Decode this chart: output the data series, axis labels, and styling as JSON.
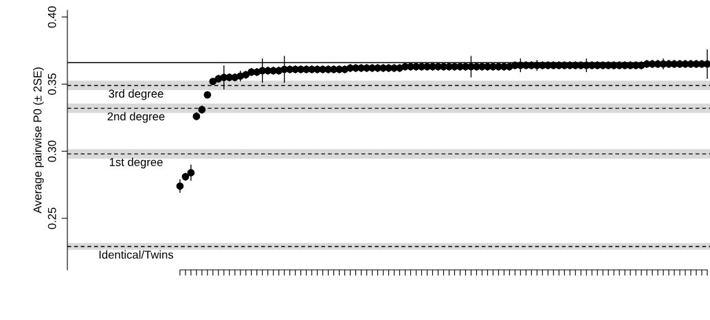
{
  "chart_data": {
    "type": "scatter",
    "ylabel": "Average pairwise P0 (± 2SE)",
    "categories": [
      null,
      null,
      null,
      null,
      null,
      null,
      null,
      null,
      null,
      null,
      null,
      null,
      null,
      null,
      null,
      null,
      null,
      null,
      null,
      null,
      null,
      null,
      null,
      null,
      null,
      null,
      null,
      null,
      null,
      null,
      null,
      null,
      null,
      null,
      null,
      null,
      null,
      null,
      null,
      null,
      null,
      null,
      null,
      null,
      null,
      null,
      null,
      null,
      null,
      null,
      null,
      null,
      null,
      null,
      null,
      null,
      null,
      null,
      null,
      null,
      null,
      null,
      null,
      null,
      null,
      null,
      null,
      null,
      null,
      null,
      null,
      null,
      null,
      null,
      null,
      null,
      null,
      null,
      null,
      null,
      null,
      null,
      null,
      null,
      null,
      null,
      null,
      null,
      null,
      null,
      null,
      null,
      null,
      null,
      null,
      null,
      null,
      null,
      null,
      null,
      null,
      null,
      null,
      null,
      null,
      null,
      null,
      null,
      null,
      null,
      null,
      null,
      null,
      null,
      null,
      null,
      null
    ],
    "series": [
      {
        "color": "#000000",
        "values": [
          null,
          null,
          null,
          null,
          null,
          null,
          null,
          null,
          null,
          null,
          null,
          null,
          null,
          null,
          null,
          null,
          null,
          null,
          null,
          null,
          0.274,
          0.281,
          0.284,
          0.326,
          0.331,
          0.342,
          0.352,
          0.354,
          0.355,
          0.355,
          0.355,
          0.356,
          0.357,
          0.359,
          0.359,
          0.36,
          0.36,
          0.36,
          0.36,
          0.361,
          0.361,
          0.361,
          0.361,
          0.361,
          0.361,
          0.361,
          0.361,
          0.361,
          0.361,
          0.361,
          0.361,
          0.362,
          0.362,
          0.362,
          0.362,
          0.362,
          0.362,
          0.362,
          0.362,
          0.362,
          0.362,
          0.363,
          0.363,
          0.363,
          0.363,
          0.363,
          0.363,
          0.363,
          0.363,
          0.363,
          0.363,
          0.363,
          0.363,
          0.363,
          0.363,
          0.363,
          0.363,
          0.363,
          0.363,
          0.363,
          0.363,
          0.364,
          0.364,
          0.364,
          0.364,
          0.364,
          0.364,
          0.364,
          0.364,
          0.364,
          0.364,
          0.364,
          0.364,
          0.364,
          0.364,
          0.364,
          0.364,
          0.364,
          0.364,
          0.364,
          0.364,
          0.364,
          0.364,
          0.364,
          0.364,
          0.365,
          0.365,
          0.365,
          0.365,
          0.365,
          0.365,
          0.365,
          0.365,
          0.365,
          0.365,
          0.365,
          0.365
        ],
        "errors": [
          null,
          null,
          null,
          null,
          null,
          null,
          null,
          null,
          null,
          null,
          null,
          null,
          null,
          null,
          null,
          null,
          null,
          null,
          null,
          null,
          0.005,
          0.003,
          0.006,
          0.003,
          0.003,
          0.002,
          0.002,
          0.003,
          0.009,
          0.003,
          0.003,
          0.004,
          0.003,
          0.003,
          0.003,
          0.009,
          0.003,
          0.003,
          0.003,
          0.01,
          0.003,
          0.003,
          0.003,
          0.003,
          0.003,
          0.003,
          0.003,
          0.003,
          0.003,
          0.003,
          0.003,
          0.003,
          0.003,
          0.003,
          0.003,
          0.003,
          0.003,
          0.003,
          0.003,
          0.003,
          0.003,
          0.003,
          0.003,
          0.003,
          0.003,
          0.003,
          0.003,
          0.003,
          0.003,
          0.003,
          0.003,
          0.003,
          0.003,
          0.008,
          0.003,
          0.003,
          0.003,
          0.003,
          0.003,
          0.003,
          0.003,
          0.003,
          0.005,
          0.003,
          0.003,
          0.004,
          0.003,
          0.003,
          0.003,
          0.003,
          0.003,
          0.003,
          0.003,
          0.003,
          0.005,
          0.003,
          0.003,
          0.003,
          0.003,
          0.003,
          0.003,
          0.003,
          0.003,
          0.003,
          0.003,
          0.003,
          0.003,
          0.003,
          0.004,
          0.003,
          0.003,
          0.003,
          0.003,
          0.003,
          0.003,
          0.003,
          0.011
        ]
      }
    ],
    "marker": "circle",
    "ylim": [
      0.2116,
      0.405
    ],
    "yticks": [
      {
        "value": 0.25,
        "label": "0.25"
      },
      {
        "value": 0.3,
        "label": "0.30"
      },
      {
        "value": 0.35,
        "label": "0.35"
      },
      {
        "value": 0.4,
        "label": "0.40"
      }
    ],
    "tick_labels": "y",
    "grid": false,
    "legend": false,
    "ref_lines": [
      {
        "axis": "y",
        "value": 0.366,
        "line_style": "solid",
        "color": "#000000"
      },
      {
        "axis": "y",
        "value": 0.349,
        "line_style": "dashed",
        "color": "#000000",
        "label": "3rd degree"
      },
      {
        "axis": "y",
        "value": 0.332,
        "line_style": "dashed",
        "color": "#000000",
        "label": "2nd degree"
      },
      {
        "axis": "y",
        "value": 0.298,
        "line_style": "dashed",
        "color": "#000000",
        "label": "1st degree"
      },
      {
        "axis": "y",
        "value": 0.229,
        "line_style": "dashed",
        "color": "#000000",
        "label": "Identical/Twins"
      }
    ],
    "bands": [
      {
        "axis": "y",
        "from": 0.3455,
        "to": 0.3525,
        "color": "#d9d9d9"
      },
      {
        "axis": "y",
        "from": 0.3285,
        "to": 0.3355,
        "color": "#d9d9d9"
      },
      {
        "axis": "y",
        "from": 0.2945,
        "to": 0.3015,
        "color": "#d9d9d9"
      },
      {
        "axis": "y",
        "from": 0.2265,
        "to": 0.2315,
        "color": "#d9d9d9"
      }
    ]
  }
}
